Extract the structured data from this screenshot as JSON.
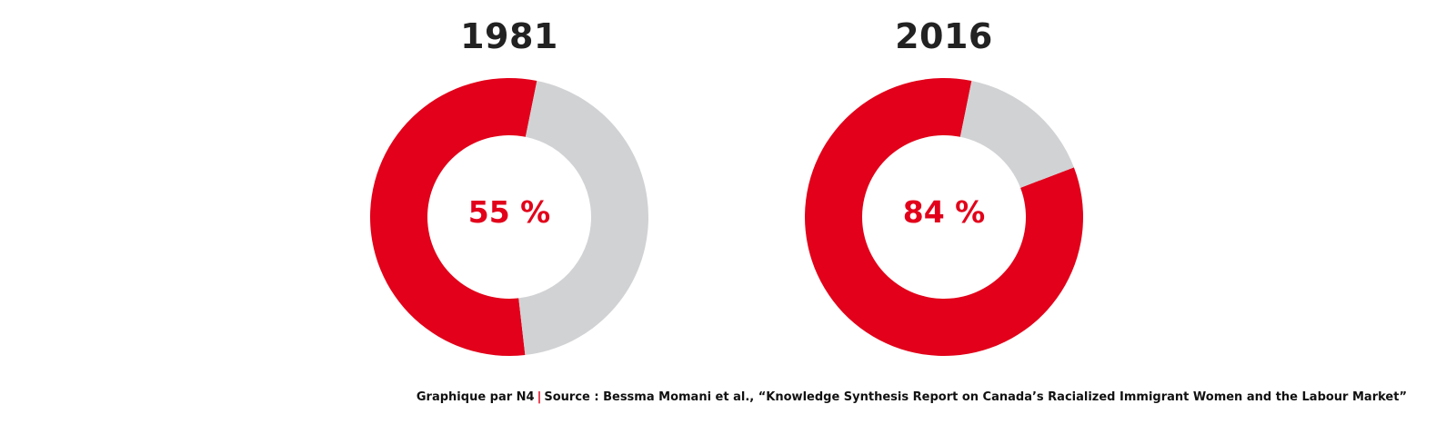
{
  "colors": {
    "highlight": "#e2001a",
    "rest": "#d1d2d4"
  },
  "chart_data": [
    {
      "type": "pie",
      "title": "1981",
      "values": [
        55,
        45
      ],
      "label": "55 %"
    },
    {
      "type": "pie",
      "title": "2016",
      "values": [
        84,
        16
      ],
      "label": "84 %"
    }
  ],
  "footer": {
    "credit": "Graphique par N4",
    "separator": "|",
    "source": "Source : Bessma Momani et al., “Knowledge Synthesis Report on Canada’s Racialized Immigrant Women and the Labour Market”"
  }
}
